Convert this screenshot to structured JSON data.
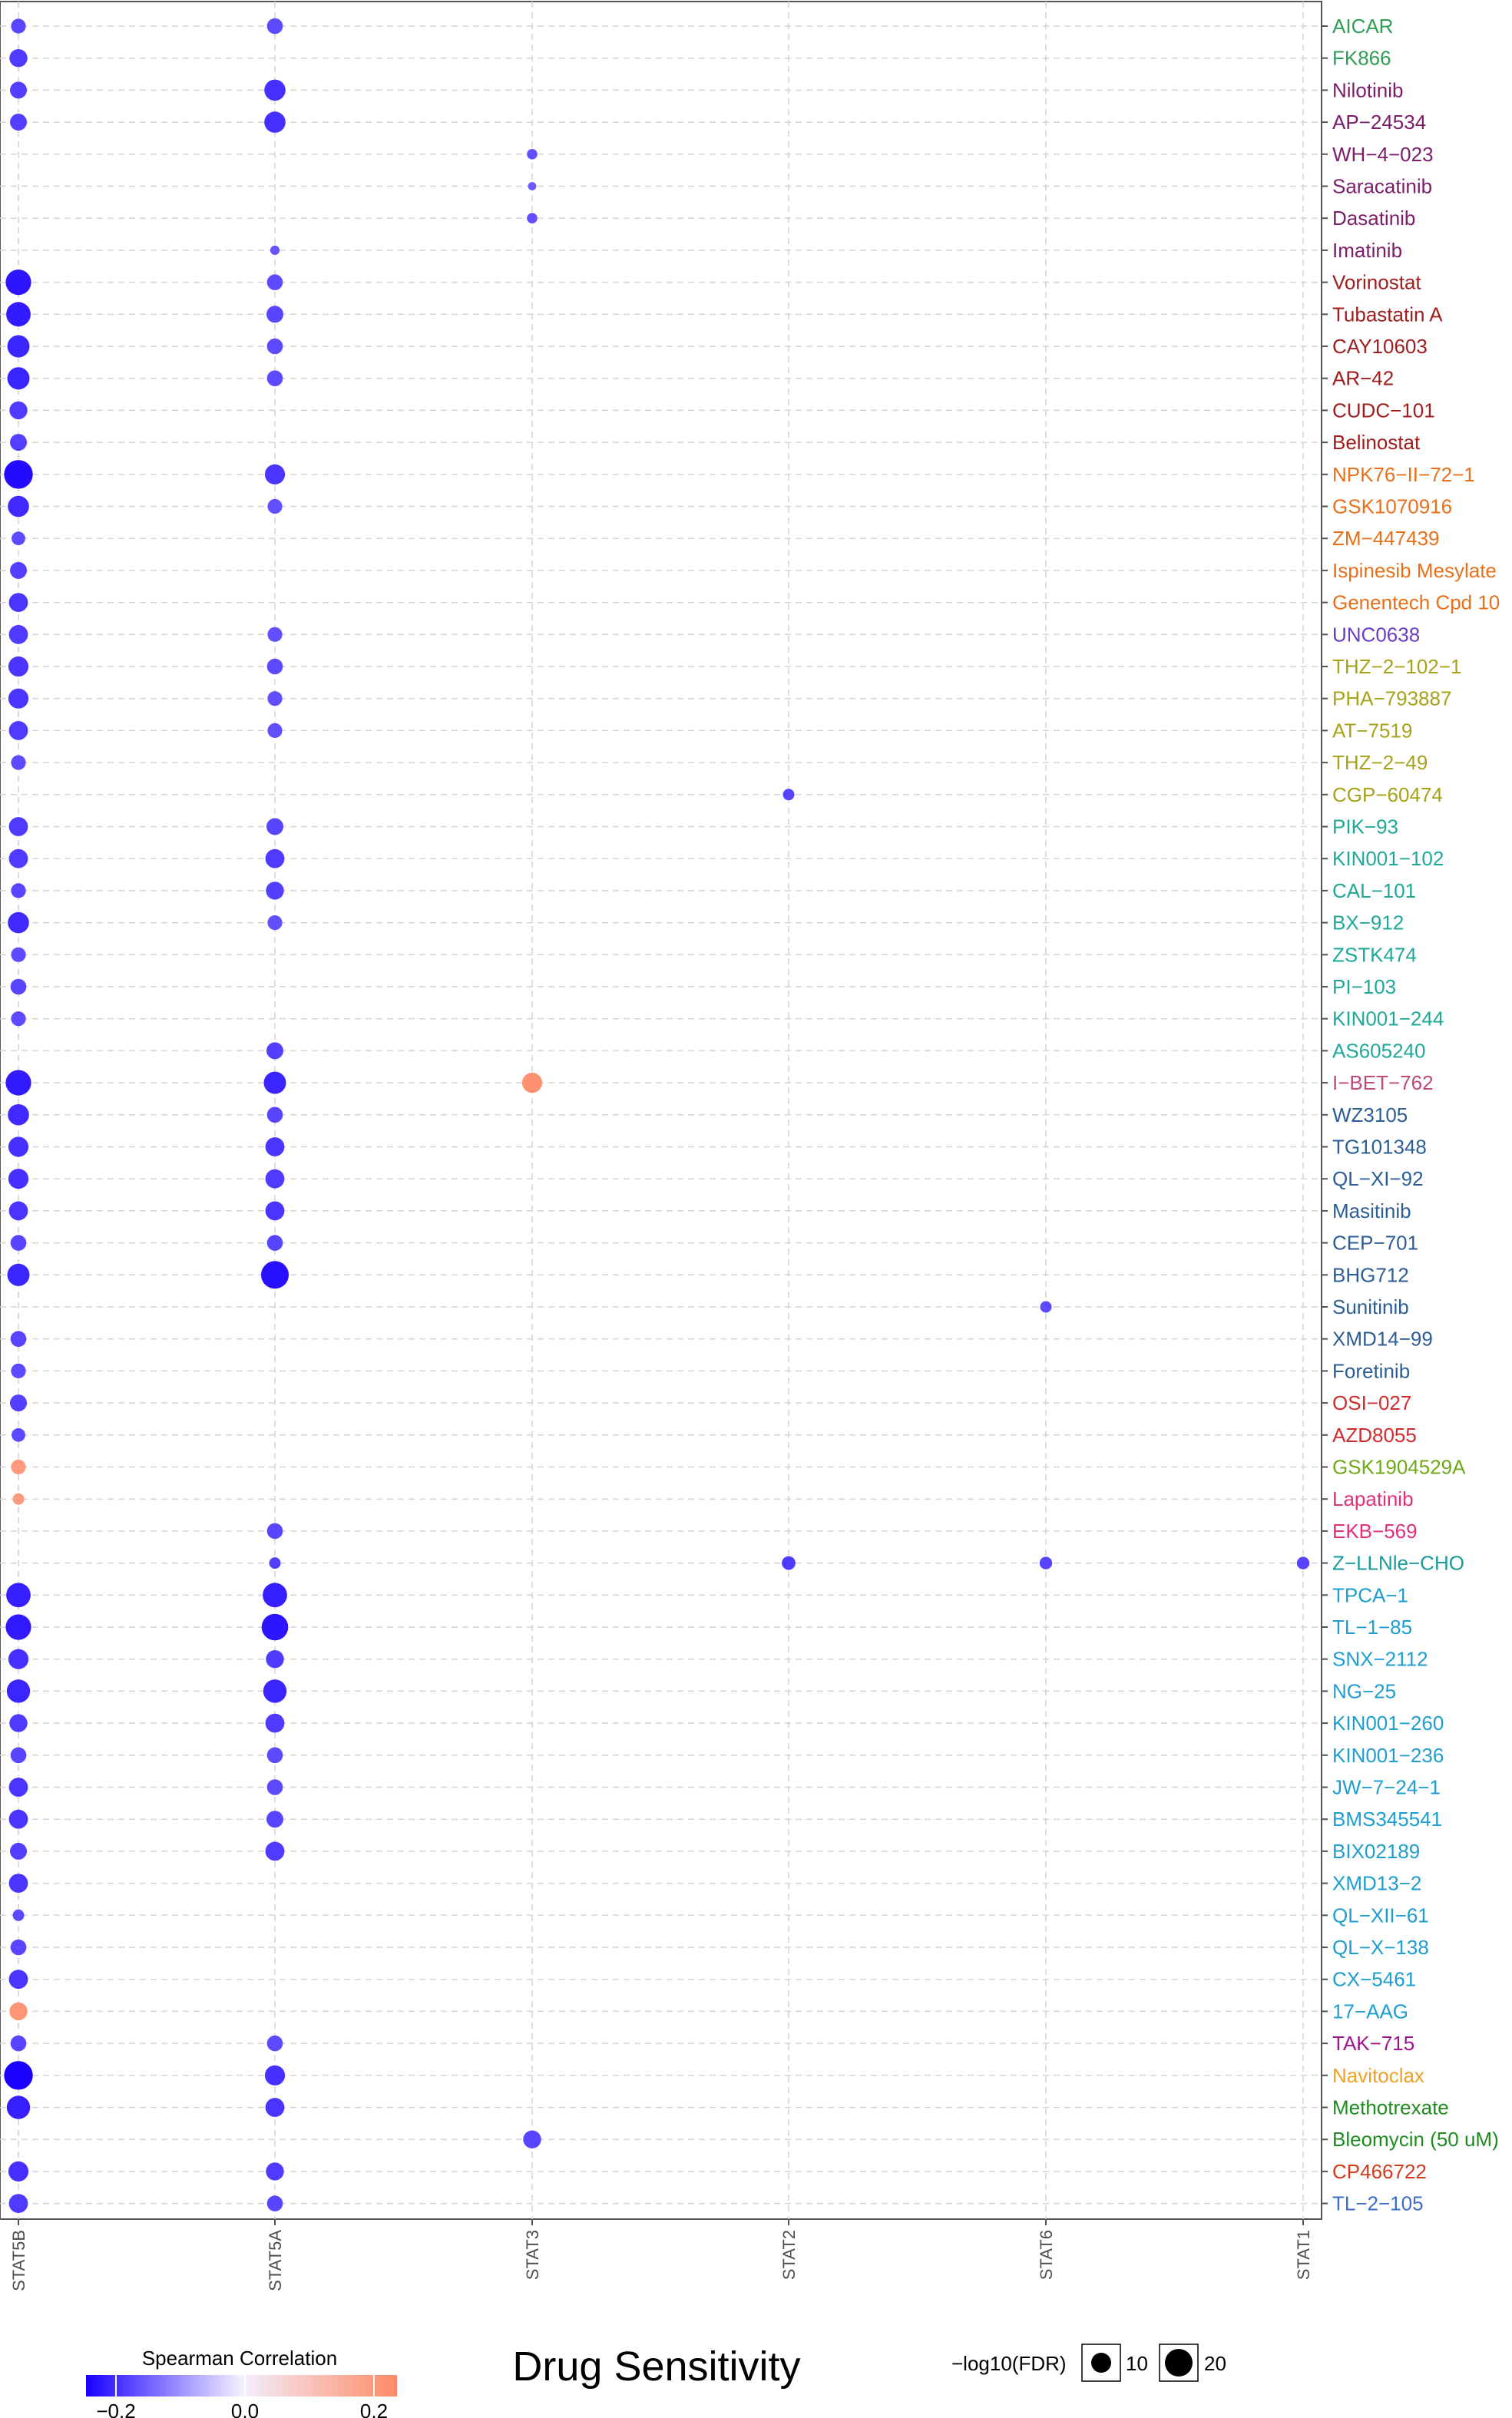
{
  "title": "Drug Sensitivity",
  "legend": {
    "color_title": "Spearman Correlation",
    "color_ticks": [
      "−0.2",
      "0.0",
      "0.2"
    ],
    "color_low": "#1a00ff",
    "color_mid": "#f3f0ff",
    "color_high": "#ff8a65",
    "size_title": "−log10(FDR)",
    "size_labels": [
      "10",
      "20"
    ]
  },
  "chart_data": {
    "type": "scatter",
    "genes": [
      "STAT5B",
      "STAT5A",
      "STAT3",
      "STAT2",
      "STAT6",
      "STAT1"
    ],
    "drugs": [
      {
        "name": "AICAR",
        "color": "#2e9e54"
      },
      {
        "name": "FK866",
        "color": "#2e9e54"
      },
      {
        "name": "Nilotinib",
        "color": "#7b1d6b"
      },
      {
        "name": "AP−24534",
        "color": "#7b1d6b"
      },
      {
        "name": "WH−4−023",
        "color": "#7b1d6b"
      },
      {
        "name": "Saracatinib",
        "color": "#7b1d6b"
      },
      {
        "name": "Dasatinib",
        "color": "#7b1d6b"
      },
      {
        "name": "Imatinib",
        "color": "#7b1d6b"
      },
      {
        "name": "Vorinostat",
        "color": "#a01d1d"
      },
      {
        "name": "Tubastatin A",
        "color": "#a01d1d"
      },
      {
        "name": "CAY10603",
        "color": "#a01d1d"
      },
      {
        "name": "AR−42",
        "color": "#a01d1d"
      },
      {
        "name": "CUDC−101",
        "color": "#a01d1d"
      },
      {
        "name": "Belinostat",
        "color": "#a01d1d"
      },
      {
        "name": "NPK76−II−72−1",
        "color": "#e8701a"
      },
      {
        "name": "GSK1070916",
        "color": "#e8701a"
      },
      {
        "name": "ZM−447439",
        "color": "#e8701a"
      },
      {
        "name": "Ispinesib Mesylate",
        "color": "#e8701a"
      },
      {
        "name": "Genentech Cpd 10",
        "color": "#e8701a"
      },
      {
        "name": "UNC0638",
        "color": "#6a3dc8"
      },
      {
        "name": "THZ−2−102−1",
        "color": "#a6a21a"
      },
      {
        "name": "PHA−793887",
        "color": "#a6a21a"
      },
      {
        "name": "AT−7519",
        "color": "#a6a21a"
      },
      {
        "name": "THZ−2−49",
        "color": "#a6a21a"
      },
      {
        "name": "CGP−60474",
        "color": "#a6a21a"
      },
      {
        "name": "PIK−93",
        "color": "#1fa89a"
      },
      {
        "name": "KIN001−102",
        "color": "#1fa89a"
      },
      {
        "name": "CAL−101",
        "color": "#1fa89a"
      },
      {
        "name": "BX−912",
        "color": "#1fa89a"
      },
      {
        "name": "ZSTK474",
        "color": "#1fa89a"
      },
      {
        "name": "PI−103",
        "color": "#1fa89a"
      },
      {
        "name": "KIN001−244",
        "color": "#1fa89a"
      },
      {
        "name": "AS605240",
        "color": "#1fa89a"
      },
      {
        "name": "I−BET−762",
        "color": "#c2487a"
      },
      {
        "name": "WZ3105",
        "color": "#2c5d94"
      },
      {
        "name": "TG101348",
        "color": "#2c5d94"
      },
      {
        "name": "QL−XI−92",
        "color": "#2c5d94"
      },
      {
        "name": "Masitinib",
        "color": "#2c5d94"
      },
      {
        "name": "CEP−701",
        "color": "#2c5d94"
      },
      {
        "name": "BHG712",
        "color": "#2c5d94"
      },
      {
        "name": "Sunitinib",
        "color": "#2c5d94"
      },
      {
        "name": "XMD14−99",
        "color": "#2c5d94"
      },
      {
        "name": "Foretinib",
        "color": "#2c5d94"
      },
      {
        "name": "OSI−027",
        "color": "#d12c2c"
      },
      {
        "name": "AZD8055",
        "color": "#d12c2c"
      },
      {
        "name": "GSK1904529A",
        "color": "#6fa81a"
      },
      {
        "name": "Lapatinib",
        "color": "#e0307a"
      },
      {
        "name": "EKB−569",
        "color": "#e0307a"
      },
      {
        "name": "Z−LLNle−CHO",
        "color": "#1a9b9b"
      },
      {
        "name": "TPCA−1",
        "color": "#1e9ed0"
      },
      {
        "name": "TL−1−85",
        "color": "#1e9ed0"
      },
      {
        "name": "SNX−2112",
        "color": "#1e9ed0"
      },
      {
        "name": "NG−25",
        "color": "#1e9ed0"
      },
      {
        "name": "KIN001−260",
        "color": "#1e9ed0"
      },
      {
        "name": "KIN001−236",
        "color": "#1e9ed0"
      },
      {
        "name": "JW−7−24−1",
        "color": "#1e9ed0"
      },
      {
        "name": "BMS345541",
        "color": "#1e9ed0"
      },
      {
        "name": "BIX02189",
        "color": "#1e9ed0"
      },
      {
        "name": "XMD13−2",
        "color": "#1e9ed0"
      },
      {
        "name": "QL−XII−61",
        "color": "#1e9ed0"
      },
      {
        "name": "QL−X−138",
        "color": "#1e9ed0"
      },
      {
        "name": "CX−5461",
        "color": "#1e9ed0"
      },
      {
        "name": "17−AAG",
        "color": "#1e9ed0"
      },
      {
        "name": "TAK−715",
        "color": "#a0148c"
      },
      {
        "name": "Navitoclax",
        "color": "#f0a020"
      },
      {
        "name": "Methotrexate",
        "color": "#1e8c1e"
      },
      {
        "name": "Bleomycin (50 uM)",
        "color": "#1e8c1e"
      },
      {
        "name": "CP466722",
        "color": "#d43a1a"
      },
      {
        "name": "TL−2−105",
        "color": "#3a6ec8"
      }
    ],
    "points": [
      {
        "drug": 0,
        "gene": 0,
        "cor": -0.12,
        "fdr": 8
      },
      {
        "drug": 0,
        "gene": 1,
        "cor": -0.11,
        "fdr": 9
      },
      {
        "drug": 1,
        "gene": 0,
        "cor": -0.14,
        "fdr": 11
      },
      {
        "drug": 2,
        "gene": 0,
        "cor": -0.13,
        "fdr": 10
      },
      {
        "drug": 2,
        "gene": 1,
        "cor": -0.16,
        "fdr": 14
      },
      {
        "drug": 3,
        "gene": 0,
        "cor": -0.13,
        "fdr": 10
      },
      {
        "drug": 3,
        "gene": 1,
        "cor": -0.16,
        "fdr": 14
      },
      {
        "drug": 4,
        "gene": 2,
        "cor": -0.1,
        "fdr": 4
      },
      {
        "drug": 5,
        "gene": 2,
        "cor": -0.08,
        "fdr": 2
      },
      {
        "drug": 6,
        "gene": 2,
        "cor": -0.1,
        "fdr": 4
      },
      {
        "drug": 7,
        "gene": 1,
        "cor": -0.09,
        "fdr": 3
      },
      {
        "drug": 8,
        "gene": 0,
        "cor": -0.21,
        "fdr": 18
      },
      {
        "drug": 8,
        "gene": 1,
        "cor": -0.11,
        "fdr": 9
      },
      {
        "drug": 9,
        "gene": 0,
        "cor": -0.2,
        "fdr": 17
      },
      {
        "drug": 9,
        "gene": 1,
        "cor": -0.12,
        "fdr": 10
      },
      {
        "drug": 10,
        "gene": 0,
        "cor": -0.18,
        "fdr": 15
      },
      {
        "drug": 10,
        "gene": 1,
        "cor": -0.11,
        "fdr": 9
      },
      {
        "drug": 11,
        "gene": 0,
        "cor": -0.18,
        "fdr": 15
      },
      {
        "drug": 11,
        "gene": 1,
        "cor": -0.11,
        "fdr": 9
      },
      {
        "drug": 12,
        "gene": 0,
        "cor": -0.14,
        "fdr": 11
      },
      {
        "drug": 13,
        "gene": 0,
        "cor": -0.13,
        "fdr": 10
      },
      {
        "drug": 14,
        "gene": 0,
        "cor": -0.23,
        "fdr": 21
      },
      {
        "drug": 14,
        "gene": 1,
        "cor": -0.15,
        "fdr": 13
      },
      {
        "drug": 15,
        "gene": 0,
        "cor": -0.17,
        "fdr": 14
      },
      {
        "drug": 15,
        "gene": 1,
        "cor": -0.1,
        "fdr": 8
      },
      {
        "drug": 16,
        "gene": 0,
        "cor": -0.11,
        "fdr": 7
      },
      {
        "drug": 17,
        "gene": 0,
        "cor": -0.13,
        "fdr": 10
      },
      {
        "drug": 18,
        "gene": 0,
        "cor": -0.15,
        "fdr": 12
      },
      {
        "drug": 19,
        "gene": 0,
        "cor": -0.14,
        "fdr": 12
      },
      {
        "drug": 19,
        "gene": 1,
        "cor": -0.1,
        "fdr": 8
      },
      {
        "drug": 20,
        "gene": 0,
        "cor": -0.15,
        "fdr": 13
      },
      {
        "drug": 20,
        "gene": 1,
        "cor": -0.11,
        "fdr": 9
      },
      {
        "drug": 21,
        "gene": 0,
        "cor": -0.15,
        "fdr": 13
      },
      {
        "drug": 21,
        "gene": 1,
        "cor": -0.1,
        "fdr": 8
      },
      {
        "drug": 22,
        "gene": 0,
        "cor": -0.14,
        "fdr": 12
      },
      {
        "drug": 22,
        "gene": 1,
        "cor": -0.1,
        "fdr": 8
      },
      {
        "drug": 23,
        "gene": 0,
        "cor": -0.11,
        "fdr": 8
      },
      {
        "drug": 24,
        "gene": 3,
        "cor": -0.12,
        "fdr": 5
      },
      {
        "drug": 25,
        "gene": 0,
        "cor": -0.14,
        "fdr": 12
      },
      {
        "drug": 25,
        "gene": 1,
        "cor": -0.12,
        "fdr": 10
      },
      {
        "drug": 26,
        "gene": 0,
        "cor": -0.14,
        "fdr": 12
      },
      {
        "drug": 26,
        "gene": 1,
        "cor": -0.14,
        "fdr": 12
      },
      {
        "drug": 27,
        "gene": 0,
        "cor": -0.12,
        "fdr": 8
      },
      {
        "drug": 27,
        "gene": 1,
        "cor": -0.13,
        "fdr": 11
      },
      {
        "drug": 28,
        "gene": 0,
        "cor": -0.17,
        "fdr": 14
      },
      {
        "drug": 28,
        "gene": 1,
        "cor": -0.1,
        "fdr": 8
      },
      {
        "drug": 29,
        "gene": 0,
        "cor": -0.11,
        "fdr": 8
      },
      {
        "drug": 30,
        "gene": 0,
        "cor": -0.12,
        "fdr": 9
      },
      {
        "drug": 31,
        "gene": 0,
        "cor": -0.11,
        "fdr": 8
      },
      {
        "drug": 32,
        "gene": 1,
        "cor": -0.13,
        "fdr": 10
      },
      {
        "drug": 33,
        "gene": 0,
        "cor": -0.2,
        "fdr": 18
      },
      {
        "drug": 33,
        "gene": 1,
        "cor": -0.18,
        "fdr": 15
      },
      {
        "drug": 33,
        "gene": 2,
        "cor": 0.22,
        "fdr": 13
      },
      {
        "drug": 34,
        "gene": 0,
        "cor": -0.17,
        "fdr": 14
      },
      {
        "drug": 34,
        "gene": 1,
        "cor": -0.12,
        "fdr": 9
      },
      {
        "drug": 35,
        "gene": 0,
        "cor": -0.16,
        "fdr": 13
      },
      {
        "drug": 35,
        "gene": 1,
        "cor": -0.15,
        "fdr": 12
      },
      {
        "drug": 36,
        "gene": 0,
        "cor": -0.16,
        "fdr": 13
      },
      {
        "drug": 36,
        "gene": 1,
        "cor": -0.14,
        "fdr": 12
      },
      {
        "drug": 37,
        "gene": 0,
        "cor": -0.15,
        "fdr": 12
      },
      {
        "drug": 37,
        "gene": 1,
        "cor": -0.15,
        "fdr": 12
      },
      {
        "drug": 38,
        "gene": 0,
        "cor": -0.12,
        "fdr": 9
      },
      {
        "drug": 38,
        "gene": 1,
        "cor": -0.12,
        "fdr": 9
      },
      {
        "drug": 39,
        "gene": 0,
        "cor": -0.18,
        "fdr": 15
      },
      {
        "drug": 39,
        "gene": 1,
        "cor": -0.22,
        "fdr": 20
      },
      {
        "drug": 40,
        "gene": 4,
        "cor": -0.11,
        "fdr": 5
      },
      {
        "drug": 41,
        "gene": 0,
        "cor": -0.12,
        "fdr": 9
      },
      {
        "drug": 42,
        "gene": 0,
        "cor": -0.11,
        "fdr": 8
      },
      {
        "drug": 43,
        "gene": 0,
        "cor": -0.13,
        "fdr": 10
      },
      {
        "drug": 44,
        "gene": 0,
        "cor": -0.11,
        "fdr": 7
      },
      {
        "drug": 45,
        "gene": 0,
        "cor": 0.18,
        "fdr": 8
      },
      {
        "drug": 46,
        "gene": 0,
        "cor": 0.18,
        "fdr": 5
      },
      {
        "drug": 47,
        "gene": 1,
        "cor": -0.12,
        "fdr": 9
      },
      {
        "drug": 48,
        "gene": 1,
        "cor": -0.13,
        "fdr": 5
      },
      {
        "drug": 48,
        "gene": 3,
        "cor": -0.14,
        "fdr": 7
      },
      {
        "drug": 48,
        "gene": 4,
        "cor": -0.12,
        "fdr": 6
      },
      {
        "drug": 48,
        "gene": 5,
        "cor": -0.12,
        "fdr": 6
      },
      {
        "drug": 49,
        "gene": 0,
        "cor": -0.19,
        "fdr": 17
      },
      {
        "drug": 49,
        "gene": 1,
        "cor": -0.19,
        "fdr": 17
      },
      {
        "drug": 50,
        "gene": 0,
        "cor": -0.2,
        "fdr": 18
      },
      {
        "drug": 50,
        "gene": 1,
        "cor": -0.21,
        "fdr": 19
      },
      {
        "drug": 51,
        "gene": 0,
        "cor": -0.16,
        "fdr": 13
      },
      {
        "drug": 51,
        "gene": 1,
        "cor": -0.14,
        "fdr": 11
      },
      {
        "drug": 52,
        "gene": 0,
        "cor": -0.18,
        "fdr": 16
      },
      {
        "drug": 52,
        "gene": 1,
        "cor": -0.18,
        "fdr": 16
      },
      {
        "drug": 53,
        "gene": 0,
        "cor": -0.14,
        "fdr": 11
      },
      {
        "drug": 53,
        "gene": 1,
        "cor": -0.14,
        "fdr": 12
      },
      {
        "drug": 54,
        "gene": 0,
        "cor": -0.12,
        "fdr": 9
      },
      {
        "drug": 54,
        "gene": 1,
        "cor": -0.11,
        "fdr": 9
      },
      {
        "drug": 55,
        "gene": 0,
        "cor": -0.15,
        "fdr": 12
      },
      {
        "drug": 55,
        "gene": 1,
        "cor": -0.11,
        "fdr": 9
      },
      {
        "drug": 56,
        "gene": 0,
        "cor": -0.15,
        "fdr": 12
      },
      {
        "drug": 56,
        "gene": 1,
        "cor": -0.12,
        "fdr": 10
      },
      {
        "drug": 57,
        "gene": 0,
        "cor": -0.13,
        "fdr": 10
      },
      {
        "drug": 57,
        "gene": 1,
        "cor": -0.14,
        "fdr": 12
      },
      {
        "drug": 58,
        "gene": 0,
        "cor": -0.15,
        "fdr": 12
      },
      {
        "drug": 59,
        "gene": 0,
        "cor": -0.11,
        "fdr": 5
      },
      {
        "drug": 60,
        "gene": 0,
        "cor": -0.12,
        "fdr": 9
      },
      {
        "drug": 61,
        "gene": 0,
        "cor": -0.15,
        "fdr": 12
      },
      {
        "drug": 62,
        "gene": 0,
        "cor": 0.2,
        "fdr": 11
      },
      {
        "drug": 63,
        "gene": 0,
        "cor": -0.12,
        "fdr": 9
      },
      {
        "drug": 63,
        "gene": 1,
        "cor": -0.11,
        "fdr": 9
      },
      {
        "drug": 64,
        "gene": 0,
        "cor": -0.25,
        "fdr": 21
      },
      {
        "drug": 64,
        "gene": 1,
        "cor": -0.16,
        "fdr": 13
      },
      {
        "drug": 65,
        "gene": 0,
        "cor": -0.19,
        "fdr": 16
      },
      {
        "drug": 65,
        "gene": 1,
        "cor": -0.15,
        "fdr": 12
      },
      {
        "drug": 66,
        "gene": 2,
        "cor": -0.12,
        "fdr": 11
      },
      {
        "drug": 67,
        "gene": 0,
        "cor": -0.16,
        "fdr": 13
      },
      {
        "drug": 67,
        "gene": 1,
        "cor": -0.14,
        "fdr": 11
      },
      {
        "drug": 68,
        "gene": 0,
        "cor": -0.14,
        "fdr": 12
      },
      {
        "drug": 68,
        "gene": 1,
        "cor": -0.12,
        "fdr": 9
      }
    ],
    "color_range": [
      -0.25,
      0.25
    ],
    "xlabel": "",
    "ylabel": "",
    "grid": true,
    "legend_position": "bottom"
  }
}
